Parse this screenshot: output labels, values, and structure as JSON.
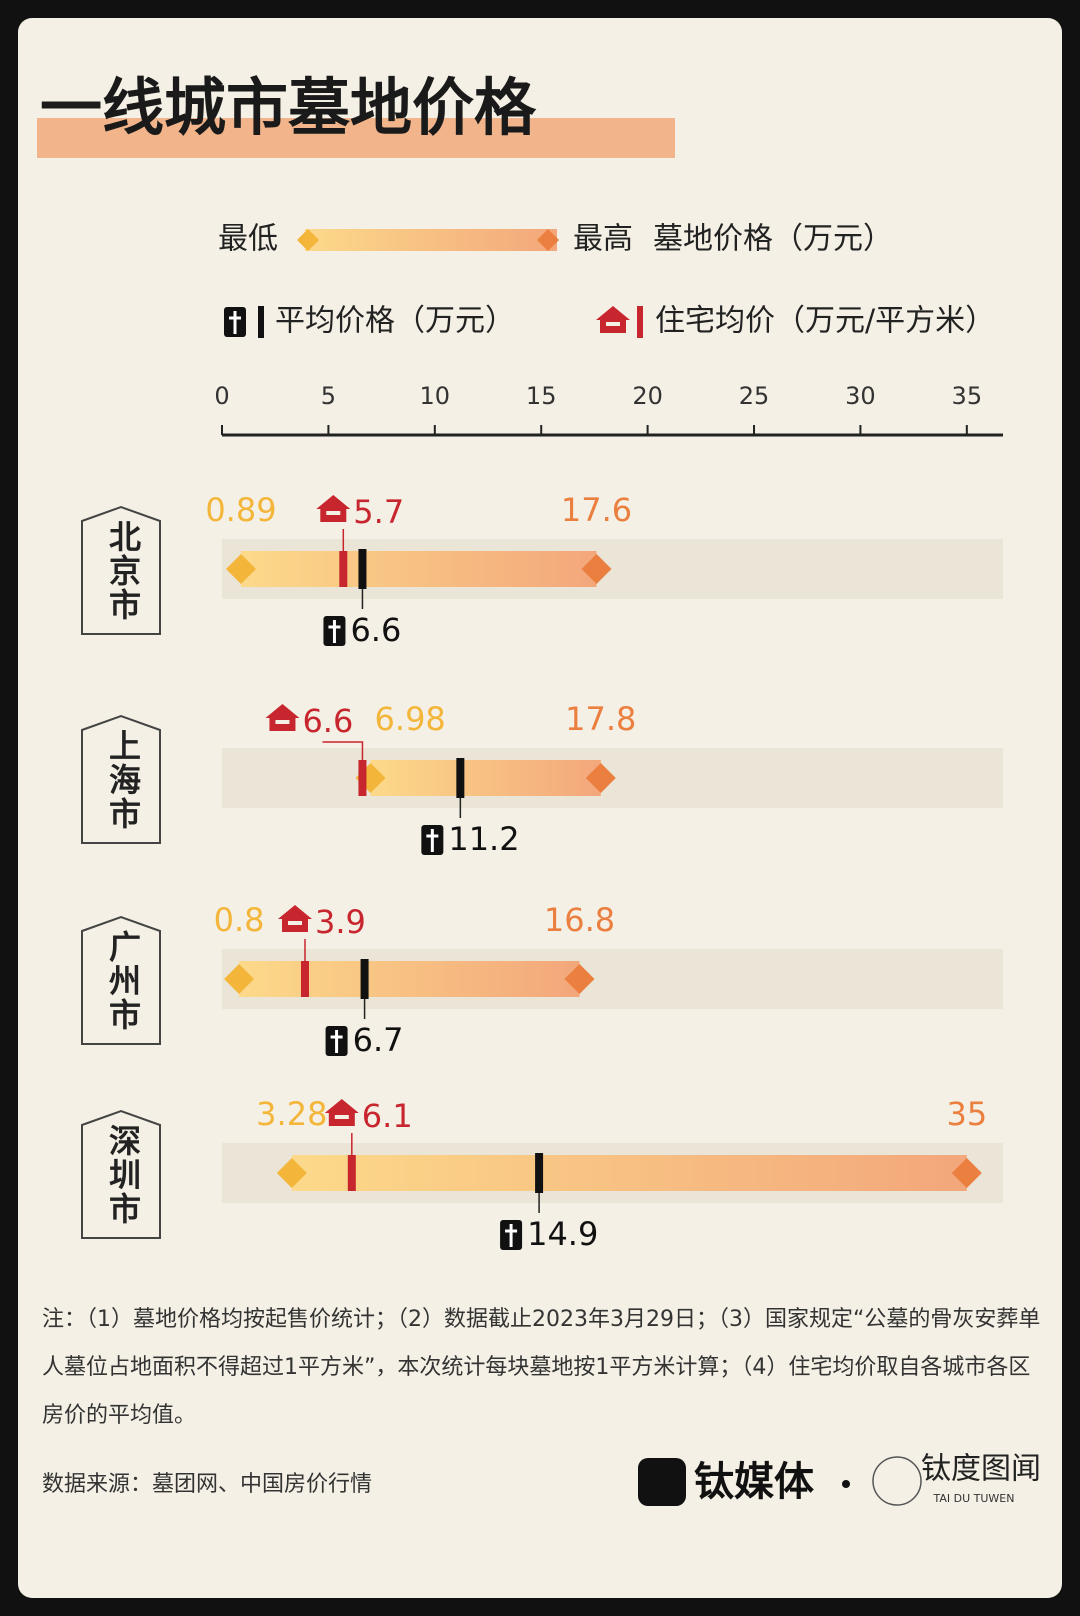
{
  "chart_data": {
    "type": "range",
    "title": "一线城市墓地价格",
    "legend_range_label": "墓地价格（万元）",
    "categories": [
      "北京市",
      "上海市",
      "广州市",
      "深圳市"
    ],
    "series": [
      {
        "name": "最低",
        "color": "#f4b63a",
        "values": [
          0.89,
          6.98,
          0.8,
          3.28
        ]
      },
      {
        "name": "最高",
        "color": "#eb7f3f",
        "values": [
          17.6,
          17.8,
          16.8,
          35
        ]
      },
      {
        "name": "平均价格（万元）",
        "color": "#111111",
        "values": [
          6.6,
          11.2,
          6.7,
          14.9
        ]
      },
      {
        "name": "住宅均价（万元/平方米）",
        "color": "#c8262e",
        "values": [
          5.7,
          6.6,
          3.9,
          6.1
        ]
      }
    ],
    "xlim": [
      0,
      36.7
    ],
    "xticks": [
      0,
      5,
      10,
      15,
      20,
      25,
      30,
      35
    ],
    "note": "注：（1）墓地价格均按起售价统计；（2）数据截止2023年3月29日；（3）国家规定“公墓的骨灰安葬单人墓位占地面积不得超过1平方米”，本次统计每块墓地按1平方米计算；（4）住宅均价取自各城市各区房价的平均值。",
    "source": "数据来源：墓团网、中国房价行情",
    "logos": [
      "钛媒体",
      "钛度图闻",
      "TAI DU TUWEN"
    ]
  }
}
